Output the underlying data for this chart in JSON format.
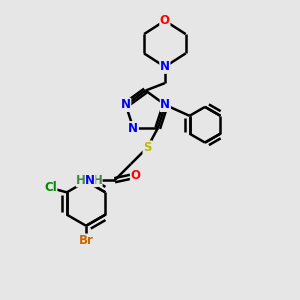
{
  "bg_color": "#e6e6e6",
  "bond_color": "#000000",
  "bond_lw": 1.8,
  "atom_colors": {
    "N": "#0000ff",
    "O": "#ff0000",
    "S": "#bbbb00",
    "Cl": "#008800",
    "Br": "#cc6600",
    "H": "#448844",
    "C": "#000000"
  },
  "fs": 8.5,
  "fig_w": 3.0,
  "fig_h": 3.0,
  "dpi": 100
}
